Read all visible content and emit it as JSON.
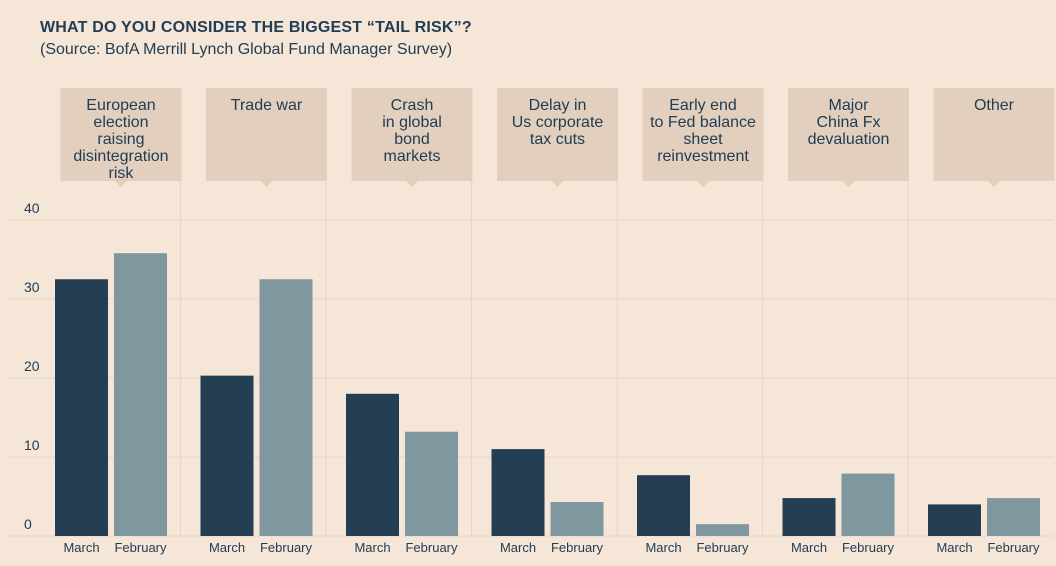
{
  "colors": {
    "background": "#f5e6d8",
    "label_box": "#e2cfbd",
    "grid": "#e8d6c6",
    "march": "#243f54",
    "february": "#7f979f",
    "text": "#223d53"
  },
  "chart_data": {
    "type": "bar",
    "title": "WHAT DO YOU CONSIDER THE BIGGEST “TAIL RISK”?",
    "subtitle": "(Source: BofA Merrill Lynch Global Fund Manager Survey)",
    "categories": [
      [
        "European",
        "election",
        "raising",
        "disintegration",
        "risk"
      ],
      [
        "Trade war"
      ],
      [
        "Crash",
        "in global",
        "bond",
        "markets"
      ],
      [
        "Delay in",
        "Us corporate",
        "tax cuts"
      ],
      [
        "Early end",
        "to Fed balance",
        "sheet",
        "reinvestment"
      ],
      [
        "Major",
        "China Fx",
        "devaluation"
      ],
      [
        "Other"
      ]
    ],
    "series": [
      {
        "name": "March",
        "values": [
          32.5,
          20.3,
          18,
          11,
          7.7,
          4.8,
          4
        ]
      },
      {
        "name": "February",
        "values": [
          35.8,
          32.5,
          13.2,
          4.3,
          1.5,
          7.9,
          4.8
        ]
      }
    ],
    "yticks": [
      0,
      10,
      20,
      30,
      40
    ],
    "ylim": [
      0,
      40
    ],
    "xlabel": "",
    "ylabel": "",
    "grid": true
  }
}
